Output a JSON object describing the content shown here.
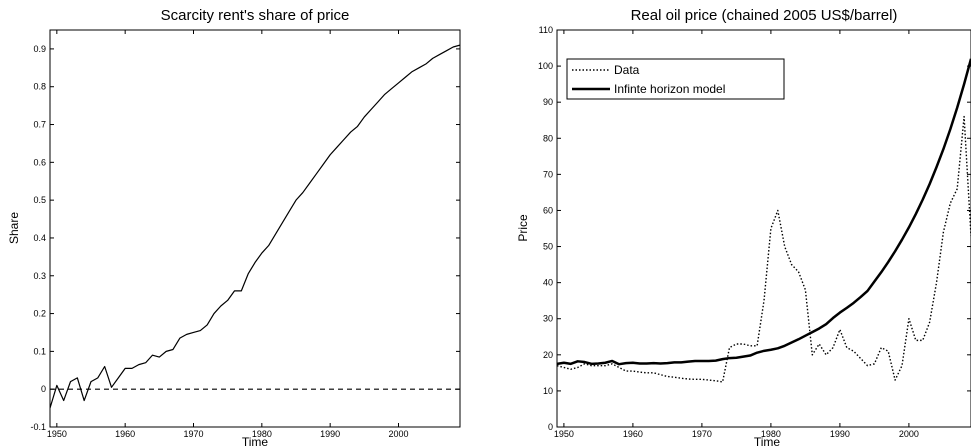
{
  "chart_data": [
    {
      "type": "line",
      "title": "Scarcity rent's share of price",
      "xlabel": "Time",
      "ylabel": "Share",
      "xlim": [
        1949,
        2009
      ],
      "ylim": [
        -0.1,
        0.95
      ],
      "xticks": [
        1950,
        1960,
        1970,
        1980,
        1990,
        2000
      ],
      "yticks": [
        -0.1,
        0,
        0.1,
        0.2,
        0.3,
        0.4,
        0.5,
        0.6,
        0.7,
        0.8,
        0.9
      ],
      "tick_labels_y": [
        "-0.1",
        "0",
        "0.1",
        "0.2",
        "0.3",
        "0.4",
        "0.5",
        "0.6",
        "0.7",
        "0.8",
        "0.9"
      ],
      "grid": false,
      "reference_line": {
        "y": 0,
        "style": "dashed"
      },
      "series": [
        {
          "style": "solid",
          "x": [
            1949,
            1950,
            1951,
            1952,
            1953,
            1954,
            1955,
            1956,
            1957,
            1958,
            1959,
            1960,
            1961,
            1962,
            1963,
            1964,
            1965,
            1966,
            1967,
            1968,
            1969,
            1970,
            1971,
            1972,
            1973,
            1974,
            1975,
            1976,
            1977,
            1978,
            1979,
            1980,
            1981,
            1982,
            1983,
            1984,
            1985,
            1986,
            1987,
            1988,
            1989,
            1990,
            1991,
            1992,
            1993,
            1994,
            1995,
            1996,
            1997,
            1998,
            1999,
            2000,
            2001,
            2002,
            2003,
            2004,
            2005,
            2006,
            2007,
            2008,
            2009
          ],
          "values": [
            -0.05,
            0.01,
            -0.03,
            0.02,
            0.03,
            -0.03,
            0.02,
            0.03,
            0.06,
            0.005,
            0.03,
            0.055,
            0.055,
            0.065,
            0.07,
            0.09,
            0.085,
            0.1,
            0.105,
            0.135,
            0.145,
            0.15,
            0.155,
            0.17,
            0.2,
            0.22,
            0.235,
            0.26,
            0.26,
            0.305,
            0.335,
            0.36,
            0.38,
            0.41,
            0.44,
            0.47,
            0.5,
            0.52,
            0.545,
            0.57,
            0.595,
            0.62,
            0.64,
            0.66,
            0.68,
            0.695,
            0.72,
            0.74,
            0.76,
            0.78,
            0.795,
            0.81,
            0.825,
            0.84,
            0.85,
            0.86,
            0.875,
            0.885,
            0.895,
            0.905,
            0.91
          ]
        }
      ]
    },
    {
      "type": "line",
      "title": "Real oil price (chained 2005 US$/barrel)",
      "xlabel": "Time",
      "ylabel": "Price",
      "xlim": [
        1949,
        2009
      ],
      "ylim": [
        0,
        110
      ],
      "xticks": [
        1950,
        1960,
        1970,
        1980,
        1990,
        2000
      ],
      "yticks": [
        0,
        10,
        20,
        30,
        40,
        50,
        60,
        70,
        80,
        90,
        100,
        110
      ],
      "grid": false,
      "legend_position": "top-left",
      "series": [
        {
          "name": "Data",
          "style": "dotted",
          "x": [
            1949,
            1950,
            1951,
            1952,
            1953,
            1954,
            1955,
            1956,
            1957,
            1958,
            1959,
            1960,
            1961,
            1962,
            1963,
            1964,
            1965,
            1966,
            1967,
            1968,
            1969,
            1970,
            1971,
            1972,
            1973,
            1974,
            1975,
            1976,
            1977,
            1978,
            1979,
            1980,
            1981,
            1982,
            1983,
            1984,
            1985,
            1986,
            1987,
            1988,
            1989,
            1990,
            1991,
            1992,
            1993,
            1994,
            1995,
            1996,
            1997,
            1998,
            1999,
            2000,
            2001,
            2002,
            2003,
            2004,
            2005,
            2006,
            2007,
            2008,
            2009
          ],
          "values": [
            17,
            16.5,
            16,
            16.5,
            17.5,
            17,
            17,
            17,
            17.5,
            16.5,
            15.5,
            15.5,
            15.2,
            15,
            15,
            14.5,
            14,
            13.8,
            13.5,
            13.3,
            13.2,
            13.2,
            13,
            12.8,
            12.5,
            22,
            23,
            23,
            22.5,
            22.5,
            35,
            55,
            60,
            50,
            45,
            43,
            38,
            20,
            23,
            20,
            22,
            27,
            22,
            21,
            19,
            17,
            17.5,
            22,
            21,
            13,
            17,
            30,
            24,
            24,
            29,
            40,
            54,
            62,
            66,
            86,
            53
          ]
        },
        {
          "name": "Infinte horizon model",
          "style": "solid-thick",
          "x": [
            1949,
            1950,
            1951,
            1952,
            1953,
            1954,
            1955,
            1956,
            1957,
            1958,
            1959,
            1960,
            1961,
            1962,
            1963,
            1964,
            1965,
            1966,
            1967,
            1968,
            1969,
            1970,
            1971,
            1972,
            1973,
            1974,
            1975,
            1976,
            1977,
            1978,
            1979,
            1980,
            1981,
            1982,
            1983,
            1984,
            1985,
            1986,
            1987,
            1988,
            1989,
            1990,
            1991,
            1992,
            1993,
            1994,
            1995,
            1996,
            1997,
            1998,
            1999,
            2000,
            2001,
            2002,
            2003,
            2004,
            2005,
            2006,
            2007,
            2008,
            2009
          ],
          "values": [
            17.5,
            17.8,
            17.5,
            18.2,
            18,
            17.5,
            17.6,
            17.8,
            18.3,
            17.4,
            17.7,
            17.8,
            17.6,
            17.6,
            17.7,
            17.6,
            17.7,
            17.9,
            17.9,
            18.1,
            18.3,
            18.3,
            18.3,
            18.4,
            18.8,
            19.1,
            19.2,
            19.5,
            19.8,
            20.6,
            21.1,
            21.4,
            21.8,
            22.5,
            23.4,
            24.3,
            25.3,
            26.3,
            27.3,
            28.5,
            30.2,
            31.7,
            33,
            34.4,
            36,
            37.7,
            40.3,
            42.9,
            45.7,
            48.7,
            51.9,
            55.3,
            59,
            63,
            67.3,
            72,
            77,
            82.5,
            88.5,
            95,
            102
          ]
        }
      ]
    }
  ]
}
